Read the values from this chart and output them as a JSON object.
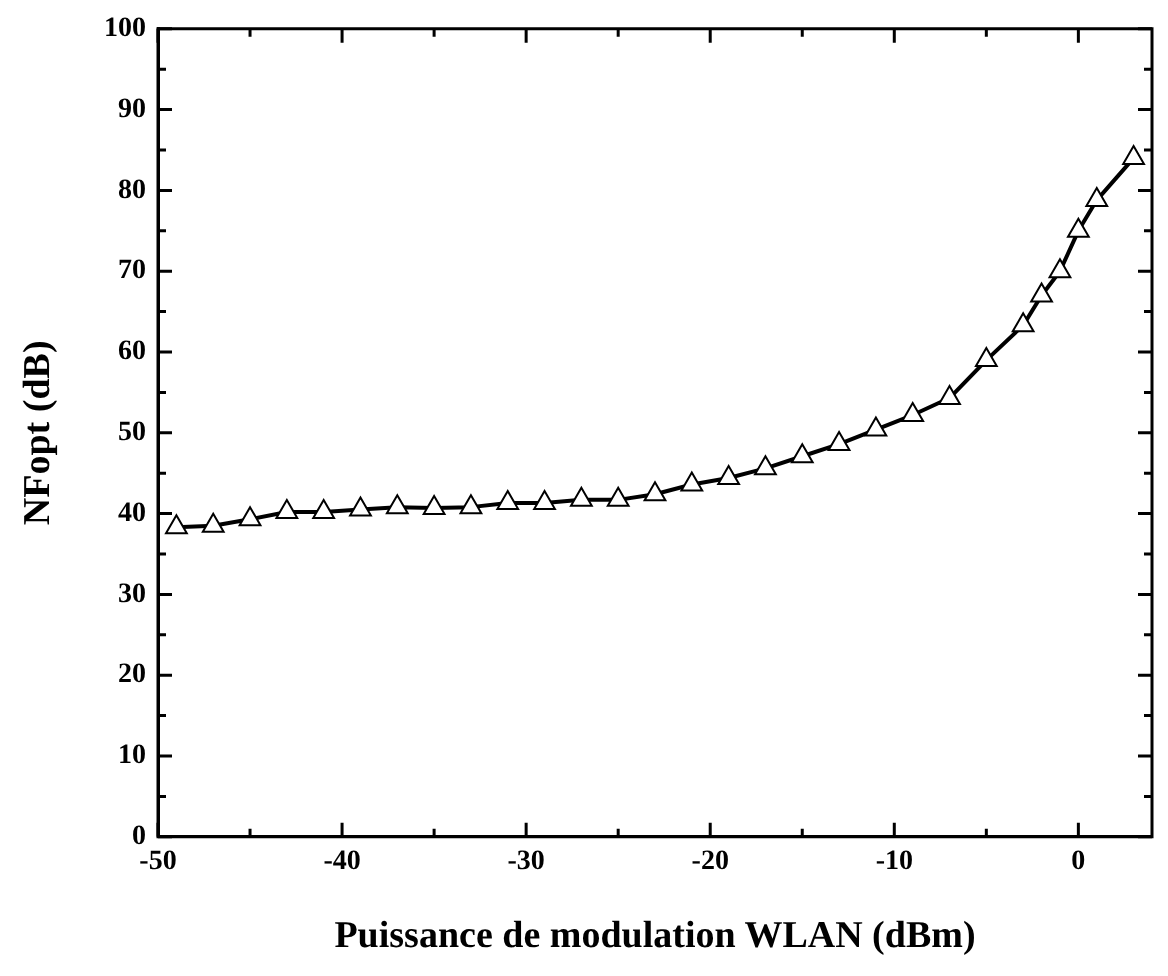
{
  "chart_data": {
    "type": "line",
    "xlabel": "Puissance de modulation WLAN (dBm)",
    "ylabel": "NFopt (dB)",
    "xlim": [
      -50,
      4
    ],
    "xticks": [
      -50,
      {
        "value": -45,
        "label": null
      },
      -40,
      {
        "value": -35,
        "label": null
      },
      -30,
      {
        "value": -25,
        "label": null
      },
      -20,
      {
        "value": -15,
        "label": null
      },
      -10,
      {
        "value": -5,
        "label": null
      },
      0
    ],
    "ylim": [
      0,
      100
    ],
    "yticks": [
      0,
      {
        "value": 5,
        "label": null
      },
      10,
      {
        "value": 15,
        "label": null
      },
      20,
      {
        "value": 25,
        "label": null
      },
      30,
      {
        "value": 35,
        "label": null
      },
      40,
      {
        "value": 45,
        "label": null
      },
      50,
      {
        "value": 55,
        "label": null
      },
      60,
      {
        "value": 65,
        "label": null
      },
      70,
      {
        "value": 75,
        "label": null
      },
      80,
      {
        "value": 85,
        "label": null
      },
      90,
      {
        "value": 95,
        "label": null
      },
      100
    ],
    "grid": false,
    "legend": false,
    "marker": "triangle",
    "line_style": "solid",
    "x": [
      -49,
      -47,
      -45,
      -43,
      -41,
      -39,
      -37,
      -35,
      -33,
      -31,
      -29,
      -27,
      -25,
      -23,
      -21,
      -19,
      -17,
      -15,
      -13,
      -11,
      -9,
      -7,
      -5,
      -3,
      -2,
      -1,
      0,
      1,
      3
    ],
    "series": [
      {
        "color": "#000000",
        "values": [
          38.3,
          38.5,
          39.3,
          40.2,
          40.2,
          40.5,
          40.8,
          40.7,
          40.8,
          41.3,
          41.3,
          41.7,
          41.7,
          42.4,
          43.6,
          44.4,
          45.6,
          47.1,
          48.6,
          50.4,
          52.2,
          54.3,
          59,
          63.3,
          67,
          70,
          75,
          78.8,
          84
        ]
      }
    ]
  }
}
